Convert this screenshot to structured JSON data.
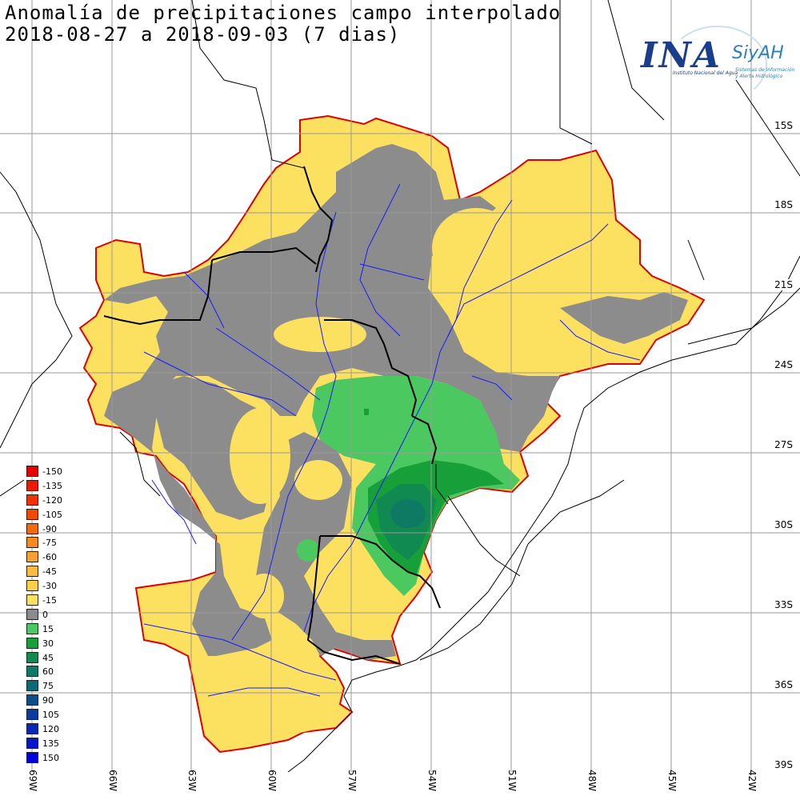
{
  "map": {
    "title_line1": "Anomalía de precipitaciones campo interpolado",
    "title_line2": "2018-08-27 a 2018-09-03 (7 dias)",
    "lat_labels": [
      "15S",
      "18S",
      "21S",
      "24S",
      "27S",
      "30S",
      "33S",
      "36S",
      "39S"
    ],
    "lon_labels": [
      "69W",
      "66W",
      "63W",
      "60W",
      "57W",
      "54W",
      "51W",
      "48W",
      "45W",
      "42W"
    ],
    "legend": [
      {
        "label": "-150",
        "color": "#e60000"
      },
      {
        "label": "-135",
        "color": "#ee1a00"
      },
      {
        "label": "-120",
        "color": "#f03200"
      },
      {
        "label": "-105",
        "color": "#f04a00"
      },
      {
        "label": "-90",
        "color": "#f06a10"
      },
      {
        "label": "-75",
        "color": "#f58a20"
      },
      {
        "label": "-60",
        "color": "#f8a030"
      },
      {
        "label": "-45",
        "color": "#fbbb40"
      },
      {
        "label": "-30",
        "color": "#fcd048"
      },
      {
        "label": "-15",
        "color": "#fce060"
      },
      {
        "label": "0",
        "color": "#8c8c8c"
      },
      {
        "label": "15",
        "color": "#4cc860"
      },
      {
        "label": "30",
        "color": "#17a03a"
      },
      {
        "label": "45",
        "color": "#108a50"
      },
      {
        "label": "60",
        "color": "#0f7a64"
      },
      {
        "label": "75",
        "color": "#0c6a78"
      },
      {
        "label": "90",
        "color": "#0a4f8a"
      },
      {
        "label": "105",
        "color": "#0a3ca0"
      },
      {
        "label": "120",
        "color": "#0828b4"
      },
      {
        "label": "135",
        "color": "#0616c8"
      },
      {
        "label": "150",
        "color": "#0000dc"
      }
    ],
    "colors": {
      "basin_outline": "#e00000",
      "border": "#000000",
      "river": "#1a1aff",
      "grid": "#9a9a9a",
      "neutral_anomaly": "#8c8c8c",
      "dry_anomaly": "#fce060",
      "wet_anomaly": "#4cc860"
    }
  },
  "logo": {
    "brand": "INA",
    "product": "SiyAH",
    "subtitle": "Instituto Nacional del Agua",
    "tagline1": "Sistemas de Información",
    "tagline2": "y Alerta Hidrológico"
  }
}
